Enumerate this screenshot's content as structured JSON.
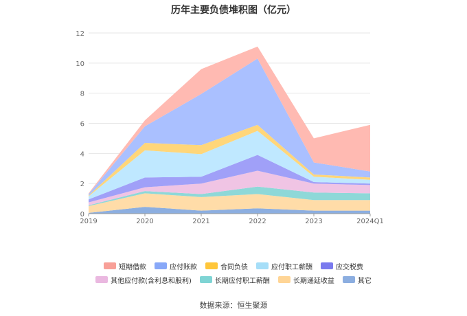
{
  "chart_data": {
    "type": "area",
    "stacked": true,
    "title": "历年主要负债堆积图（亿元）",
    "categories": [
      "2019",
      "2020",
      "2021",
      "2022",
      "2023",
      "2024Q1"
    ],
    "ylim": [
      0,
      12
    ],
    "yticks": [
      0,
      2,
      4,
      6,
      8,
      10,
      12
    ],
    "grid": true,
    "legend_position": "bottom",
    "series": [
      {
        "name": "其它",
        "color": "#8caee0",
        "values": [
          0.05,
          0.45,
          0.2,
          0.35,
          0.2,
          0.2
        ]
      },
      {
        "name": "长期递延收益",
        "color": "#ffdca8",
        "values": [
          0.45,
          0.9,
          0.9,
          0.95,
          0.7,
          0.7
        ]
      },
      {
        "name": "长期应付职工薪酬",
        "color": "#8ed8d8",
        "values": [
          0.05,
          0.15,
          0.2,
          0.5,
          0.5,
          0.45
        ]
      },
      {
        "name": "其他应付款(含利息和股利)",
        "color": "#f0c4e4",
        "values": [
          0.2,
          0.25,
          0.7,
          1.05,
          0.6,
          0.55
        ]
      },
      {
        "name": "应交税费",
        "color": "#a0a0f8",
        "values": [
          0.2,
          0.65,
          0.45,
          1.05,
          0.1,
          0.1
        ]
      },
      {
        "name": "应付职工薪酬",
        "color": "#bfe8ff",
        "values": [
          0.2,
          1.8,
          1.5,
          1.6,
          0.35,
          0.25
        ]
      },
      {
        "name": "合同负债",
        "color": "#ffd67a",
        "values": [
          0.05,
          0.5,
          0.6,
          0.4,
          0.15,
          0.15
        ]
      },
      {
        "name": "应付账款",
        "color": "#aac0ff",
        "values": [
          0.1,
          1.1,
          3.4,
          4.4,
          0.8,
          0.4
        ]
      },
      {
        "name": "短期借款",
        "color": "#ffbab2",
        "values": [
          0.05,
          0.4,
          1.65,
          0.8,
          1.6,
          3.1
        ]
      }
    ],
    "legend_rows": [
      [
        {
          "name": "短期借款",
          "color": "#f8a098"
        },
        {
          "name": "应付账款",
          "color": "#88a8f8"
        },
        {
          "name": "合同负债",
          "color": "#ffc63a"
        },
        {
          "name": "应付职工薪酬",
          "color": "#a6def8"
        },
        {
          "name": "应交税费",
          "color": "#7a7aee"
        }
      ],
      [
        {
          "name": "其他应付款(含利息和股利)",
          "color": "#eab8e0"
        },
        {
          "name": "长期应付职工薪酬",
          "color": "#7fd4d4"
        },
        {
          "name": "长期递延收益",
          "color": "#ffd596"
        },
        {
          "name": "其它",
          "color": "#8caee0"
        }
      ]
    ]
  },
  "footer": {
    "source": "数据来源：恒生聚源"
  }
}
